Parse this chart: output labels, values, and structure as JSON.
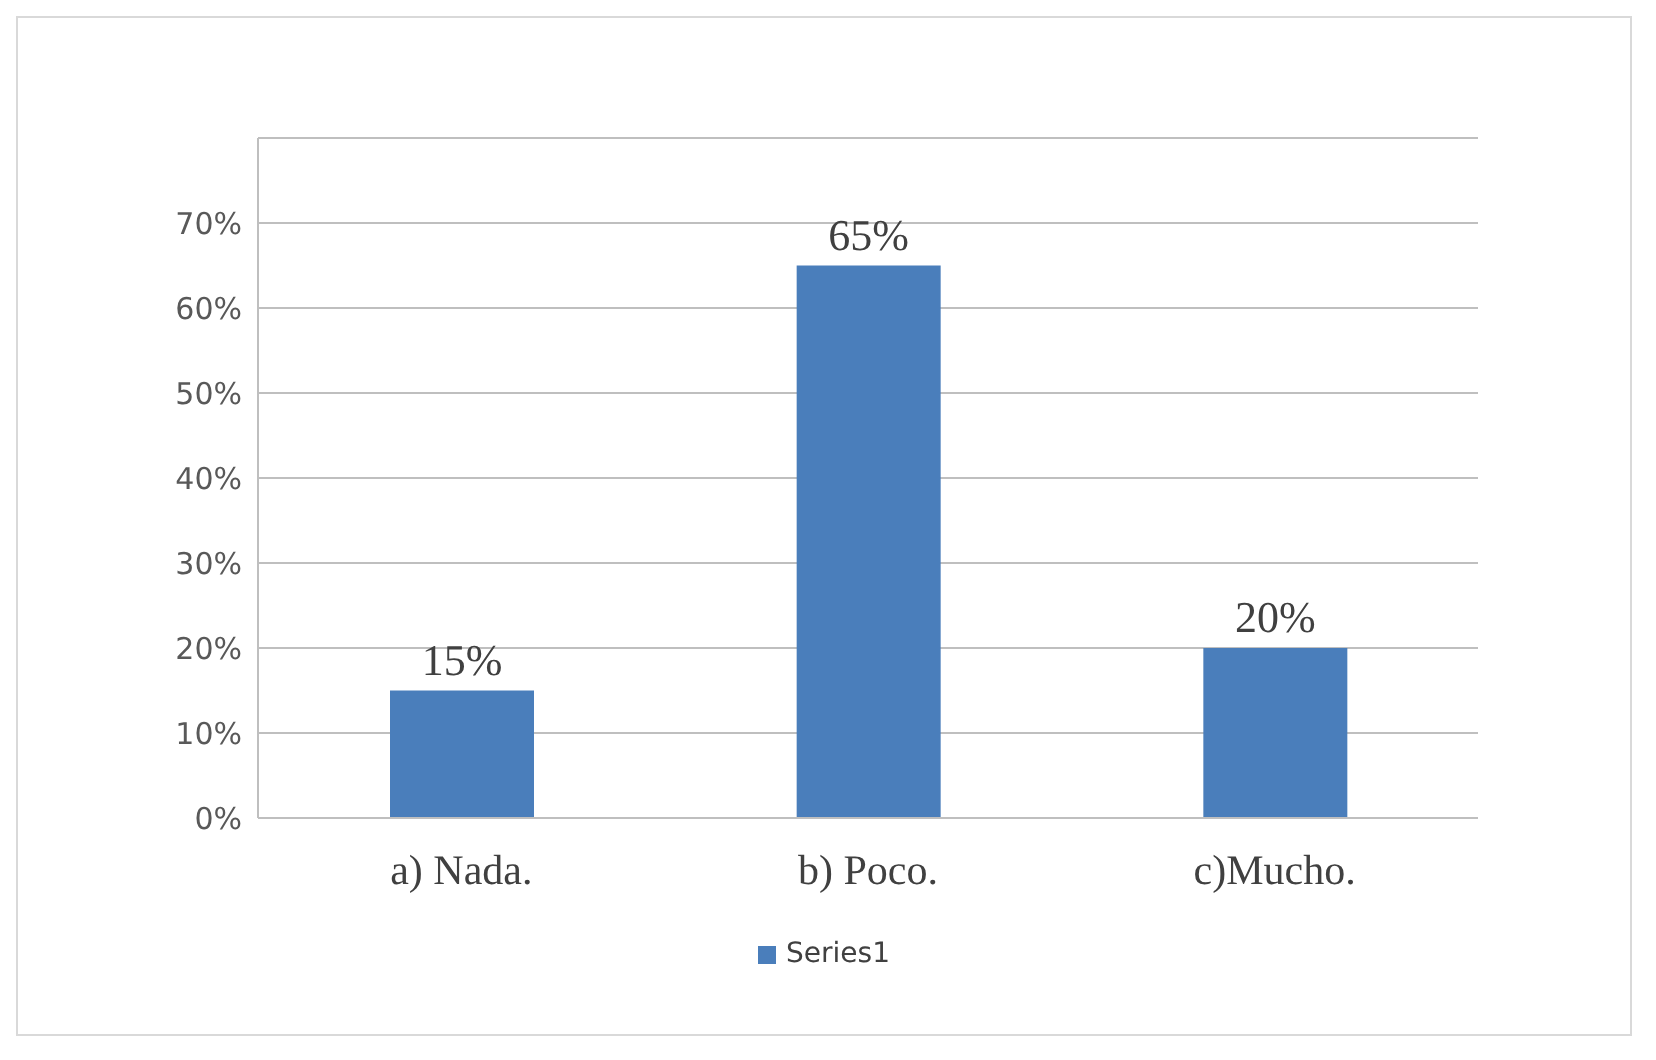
{
  "chart_data": {
    "type": "bar",
    "categories": [
      "a) Nada.",
      "b) Poco.",
      "c)Mucho."
    ],
    "series": [
      {
        "name": "Series1",
        "color": "#4a7ebb",
        "values": [
          15,
          65,
          20
        ]
      }
    ],
    "value_labels": [
      "15%",
      "65%",
      "20%"
    ],
    "ylim": [
      0,
      80
    ],
    "yticks": [
      {
        "value": 0,
        "label": "0%"
      },
      {
        "value": 10,
        "label": "10%"
      },
      {
        "value": 20,
        "label": "20%"
      },
      {
        "value": 30,
        "label": "30%"
      },
      {
        "value": 40,
        "label": "40%"
      },
      {
        "value": 50,
        "label": "50%"
      },
      {
        "value": 60,
        "label": "60%"
      },
      {
        "value": 70,
        "label": "70%"
      },
      {
        "value": 80,
        "label": null
      }
    ],
    "grid": "y",
    "legend": "bottom"
  }
}
